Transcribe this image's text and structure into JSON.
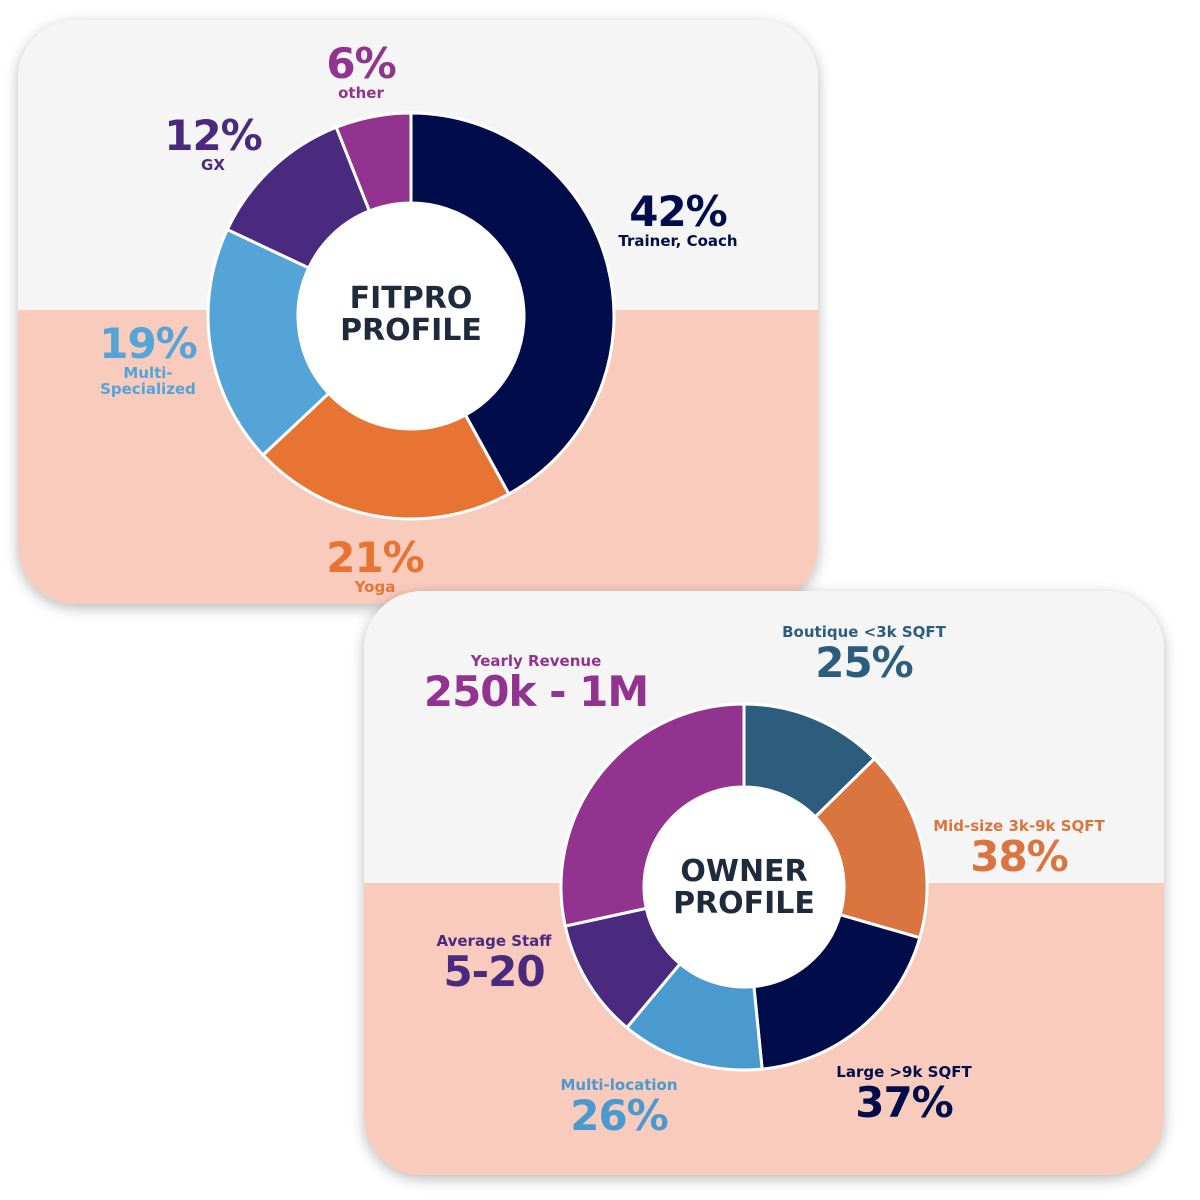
{
  "fitpro": {
    "center_line1": "FITPRO",
    "center_line2": "PROFILE",
    "segments": [
      {
        "pct": "42%",
        "label": "Trainer, Coach"
      },
      {
        "pct": "21%",
        "label": "Yoga"
      },
      {
        "pct": "19%",
        "label_line1": "Multi-",
        "label_line2": "Specialized"
      },
      {
        "pct": "12%",
        "label": "GX"
      },
      {
        "pct": "6%",
        "label": "other"
      }
    ]
  },
  "owner": {
    "center_line1": "OWNER",
    "center_line2": "PROFILE",
    "labels": {
      "boutique": {
        "title": "Boutique <3k SQFT",
        "value": "25%"
      },
      "midsize": {
        "title": "Mid-size 3k-9k SQFT",
        "value": "38%"
      },
      "large": {
        "title": "Large >9k SQFT",
        "value": "37%"
      },
      "multilocation": {
        "title": "Multi-location",
        "value": "26%"
      },
      "staff": {
        "title": "Average Staff",
        "value": "5-20"
      },
      "revenue": {
        "title": "Yearly Revenue",
        "value": "250k - 1M"
      }
    }
  },
  "colors": {
    "navy": "#000d4a",
    "orange": "#e87434",
    "light_blue": "#55a4d8",
    "indigo": "#4a2a7e",
    "purple": "#91338f",
    "slate_blue": "#2c5d7d",
    "orange_owner": "#db7540",
    "blue_owner": "#4a9ad0",
    "card_top": "#f5f5f5",
    "card_bottom": "#f8cbbd"
  },
  "chart_data": [
    {
      "type": "pie",
      "title": "FITPRO PROFILE",
      "categories": [
        "Trainer, Coach",
        "Yoga",
        "Multi-Specialized",
        "GX",
        "other"
      ],
      "values": [
        42,
        21,
        19,
        12,
        6
      ],
      "colors": [
        "#000d4a",
        "#e87434",
        "#55a4d8",
        "#4a2a7e",
        "#91338f"
      ]
    },
    {
      "type": "pie",
      "title": "OWNER PROFILE",
      "categories": [
        "Boutique <3k SQFT",
        "Mid-size 3k-9k SQFT",
        "Large >9k SQFT",
        "Multi-location",
        "Average Staff",
        "Yearly Revenue"
      ],
      "values": [
        12,
        16,
        18,
        12,
        10,
        27
      ],
      "colors": [
        "#2c5d7d",
        "#db7540",
        "#000d4a",
        "#4a9ad0",
        "#4a2a7e",
        "#91338f"
      ]
    }
  ]
}
